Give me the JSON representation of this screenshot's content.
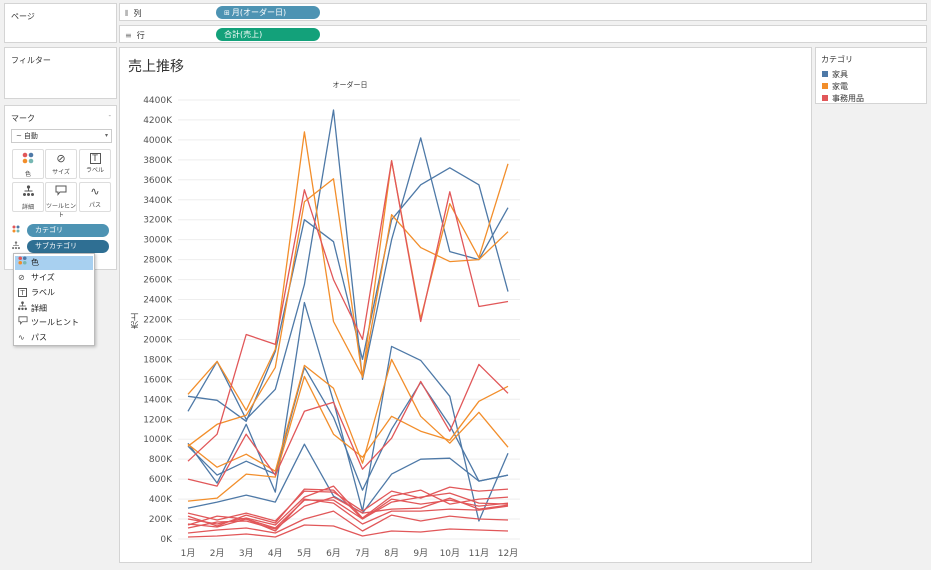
{
  "pages": {
    "title": "ページ"
  },
  "filters": {
    "title": "フィルター"
  },
  "marks": {
    "title": "マーク",
    "mark_type": "自動",
    "mark_type_icon": "line-icon",
    "buttons": [
      {
        "name": "color-button",
        "label": "色",
        "glyph": "⬤"
      },
      {
        "name": "size-button",
        "label": "サイズ",
        "glyph": "⊘"
      },
      {
        "name": "label-button",
        "label": "ラベル",
        "glyph": "T"
      },
      {
        "name": "detail-button",
        "label": "詳細",
        "glyph": "⚇"
      },
      {
        "name": "tooltip-button",
        "label": "ツールヒント",
        "glyph": "▭"
      },
      {
        "name": "path-button",
        "label": "パス",
        "glyph": "∿"
      }
    ],
    "encodings": [
      {
        "name": "color-encoding-pill",
        "label": "カテゴリ",
        "icon": "color-dots-icon"
      },
      {
        "name": "detail-encoding-pill",
        "label": "サブカテゴリ",
        "icon": "detail-icon"
      }
    ]
  },
  "dropdown": {
    "items": [
      {
        "name": "dropdown-item-color",
        "label": "色",
        "icon": "color-dots-icon",
        "selected": true
      },
      {
        "name": "dropdown-item-size",
        "label": "サイズ",
        "icon": "size-icon",
        "selected": false
      },
      {
        "name": "dropdown-item-label",
        "label": "ラベル",
        "icon": "label-icon",
        "selected": false
      },
      {
        "name": "dropdown-item-detail",
        "label": "詳細",
        "icon": "detail-icon",
        "selected": false
      },
      {
        "name": "dropdown-item-tooltip",
        "label": "ツールヒント",
        "icon": "tooltip-icon",
        "selected": false
      },
      {
        "name": "dropdown-item-path",
        "label": "パス",
        "icon": "path-icon",
        "selected": false
      }
    ]
  },
  "shelves": {
    "columns": {
      "label": "列",
      "pill": "月(オーダー日)"
    },
    "rows": {
      "label": "行",
      "pill": "合計(売上)"
    }
  },
  "legend": {
    "title": "カテゴリ",
    "items": [
      {
        "label": "家具",
        "color": "#4e79a7"
      },
      {
        "label": "家電",
        "color": "#f28e2b"
      },
      {
        "label": "事務用品",
        "color": "#e15759"
      }
    ]
  },
  "chart_data": {
    "type": "line",
    "title": "売上推移",
    "x_header": "オーダー日",
    "ylabel": "売上",
    "categories": [
      "1月",
      "2月",
      "3月",
      "4月",
      "5月",
      "6月",
      "7月",
      "8月",
      "9月",
      "10月",
      "11月",
      "12月"
    ],
    "y_ticks": [
      "0K",
      "200K",
      "400K",
      "600K",
      "800K",
      "1000K",
      "1200K",
      "1400K",
      "1600K",
      "1800K",
      "2000K",
      "2200K",
      "2400K",
      "2600K",
      "2800K",
      "3000K",
      "3200K",
      "3400K",
      "3600K",
      "3800K",
      "4000K",
      "4200K",
      "4400K"
    ],
    "ylim": [
      0,
      4500000
    ],
    "grid": true,
    "series": [
      {
        "category": "家具",
        "color": "#4e79a7",
        "values": [
          1280000,
          1780000,
          1200000,
          1500000,
          2550000,
          4300000,
          1600000,
          3000000,
          4020000,
          2880000,
          2800000,
          3320000
        ]
      },
      {
        "category": "家具",
        "color": "#4e79a7",
        "values": [
          1430000,
          1390000,
          1180000,
          1880000,
          3200000,
          2980000,
          1800000,
          3200000,
          3550000,
          3720000,
          3550000,
          2480000
        ]
      },
      {
        "category": "家具",
        "color": "#4e79a7",
        "values": [
          960000,
          560000,
          1150000,
          470000,
          2370000,
          1380000,
          280000,
          1930000,
          1790000,
          1430000,
          180000,
          860000
        ]
      },
      {
        "category": "家具",
        "color": "#4e79a7",
        "values": [
          930000,
          640000,
          780000,
          650000,
          1720000,
          1220000,
          490000,
          1100000,
          1570000,
          1140000,
          580000,
          640000
        ]
      },
      {
        "category": "家具",
        "color": "#4e79a7",
        "values": [
          310000,
          370000,
          440000,
          370000,
          950000,
          430000,
          260000,
          650000,
          800000,
          810000,
          580000,
          640000
        ]
      },
      {
        "category": "家電",
        "color": "#f28e2b",
        "values": [
          1450000,
          1780000,
          1290000,
          1900000,
          4080000,
          2180000,
          1630000,
          3790000,
          2210000,
          3360000,
          2820000,
          3760000
        ]
      },
      {
        "category": "家電",
        "color": "#f28e2b",
        "values": [
          930000,
          1150000,
          1240000,
          1720000,
          3380000,
          3610000,
          1620000,
          3250000,
          2920000,
          2780000,
          2800000,
          3080000
        ]
      },
      {
        "category": "家電",
        "color": "#f28e2b",
        "values": [
          950000,
          720000,
          850000,
          680000,
          1740000,
          1510000,
          760000,
          1800000,
          1230000,
          960000,
          1270000,
          920000
        ]
      },
      {
        "category": "家電",
        "color": "#f28e2b",
        "values": [
          380000,
          410000,
          650000,
          620000,
          1630000,
          1050000,
          820000,
          1230000,
          1080000,
          990000,
          1380000,
          1530000
        ]
      },
      {
        "category": "事務用品",
        "color": "#e15759",
        "values": [
          780000,
          1050000,
          2050000,
          1950000,
          3500000,
          2600000,
          2000000,
          3790000,
          2180000,
          3480000,
          2330000,
          2380000
        ]
      },
      {
        "category": "事務用品",
        "color": "#e15759",
        "values": [
          600000,
          530000,
          1050000,
          640000,
          1280000,
          1370000,
          700000,
          1010000,
          1580000,
          1080000,
          1750000,
          1460000
        ]
      },
      {
        "category": "事務用品",
        "color": "#e15759",
        "values": [
          260000,
          190000,
          260000,
          180000,
          480000,
          470000,
          280000,
          480000,
          410000,
          520000,
          480000,
          500000
        ]
      },
      {
        "category": "事務用品",
        "color": "#e15759",
        "values": [
          200000,
          150000,
          210000,
          140000,
          420000,
          530000,
          210000,
          430000,
          490000,
          350000,
          400000,
          420000
        ]
      },
      {
        "category": "事務用品",
        "color": "#e15759",
        "values": [
          140000,
          230000,
          200000,
          110000,
          390000,
          390000,
          200000,
          400000,
          350000,
          390000,
          330000,
          360000
        ]
      },
      {
        "category": "事務用品",
        "color": "#e15759",
        "values": [
          110000,
          170000,
          180000,
          100000,
          330000,
          420000,
          260000,
          300000,
          310000,
          410000,
          300000,
          340000
        ]
      },
      {
        "category": "事務用品",
        "color": "#e15759",
        "values": [
          60000,
          90000,
          110000,
          60000,
          200000,
          280000,
          80000,
          240000,
          180000,
          230000,
          200000,
          190000
        ]
      },
      {
        "category": "事務用品",
        "color": "#e15759",
        "values": [
          20000,
          30000,
          50000,
          20000,
          140000,
          130000,
          30000,
          80000,
          70000,
          100000,
          90000,
          80000
        ]
      },
      {
        "category": "事務用品",
        "color": "#e15759",
        "values": [
          150000,
          120000,
          200000,
          80000,
          400000,
          360000,
          150000,
          280000,
          280000,
          300000,
          290000,
          330000
        ]
      },
      {
        "category": "事務用品",
        "color": "#e15759",
        "values": [
          230000,
          130000,
          240000,
          160000,
          500000,
          490000,
          200000,
          370000,
          420000,
          460000,
          360000,
          350000
        ]
      }
    ]
  }
}
